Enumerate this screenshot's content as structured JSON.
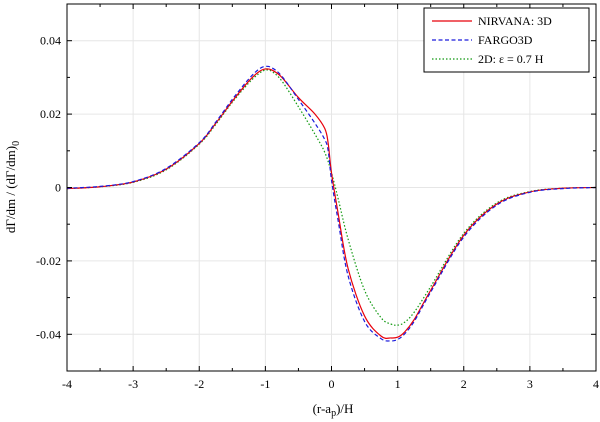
{
  "chart_data": {
    "type": "line",
    "xlabel": "(r-a",
    "xlabel_sub": "p",
    "xlabel_tail": ")/H",
    "ylabel": "dΓ/dm / (dΓ/dm)",
    "ylabel_sub": "0",
    "xlim": [
      -4,
      4
    ],
    "ylim": [
      -0.05,
      0.05
    ],
    "xticks": [
      -4,
      -3,
      -2,
      -1,
      0,
      1,
      2,
      3,
      4
    ],
    "xtick_labels": [
      "-4",
      "-3",
      "-2",
      "-1",
      "0",
      "1",
      "2",
      "3",
      "4"
    ],
    "yticks": [
      -0.04,
      -0.02,
      0,
      0.02,
      0.04
    ],
    "ytick_labels": [
      "-0.04",
      "-0.02",
      "0",
      "0.02",
      "0.04"
    ],
    "grid": true,
    "legend_position": "top-right",
    "series": [
      {
        "name": "NIRVANA: 3D",
        "color": "#e8000b",
        "dash": "solid",
        "x": [
          -4,
          -3.5,
          -3,
          -2.5,
          -2,
          -1.75,
          -1.5,
          -1.25,
          -1.1,
          -1,
          -0.9,
          -0.75,
          -0.5,
          -0.25,
          -0.1,
          -0.05,
          0,
          0.1,
          0.25,
          0.5,
          0.75,
          0.9,
          1,
          1.1,
          1.25,
          1.5,
          2,
          2.5,
          3,
          3.5,
          4
        ],
        "y": [
          -0.0003,
          0.0002,
          0.0015,
          0.005,
          0.012,
          0.0175,
          0.0235,
          0.029,
          0.0315,
          0.0323,
          0.032,
          0.03,
          0.0245,
          0.02,
          0.016,
          0.012,
          0.004,
          -0.007,
          -0.022,
          -0.035,
          -0.0405,
          -0.041,
          -0.0408,
          -0.0395,
          -0.036,
          -0.028,
          -0.013,
          -0.0045,
          -0.0012,
          -0.0002,
          0.0
        ]
      },
      {
        "name": "FARGO3D",
        "color": "#1a1adc",
        "dash": "dashed",
        "x": [
          -4,
          -3.5,
          -3,
          -2.5,
          -2,
          -1.75,
          -1.5,
          -1.25,
          -1.1,
          -1,
          -0.9,
          -0.75,
          -0.5,
          -0.25,
          -0.1,
          -0.05,
          0,
          0.1,
          0.25,
          0.5,
          0.75,
          0.9,
          1,
          1.1,
          1.25,
          1.5,
          2,
          2.5,
          3,
          3.5,
          4
        ],
        "y": [
          -0.0002,
          0.0003,
          0.0016,
          0.0052,
          0.0122,
          0.0178,
          0.024,
          0.0296,
          0.0322,
          0.033,
          0.0326,
          0.0303,
          0.024,
          0.0175,
          0.013,
          0.01,
          0.002,
          -0.009,
          -0.024,
          -0.0365,
          -0.0412,
          -0.0418,
          -0.0414,
          -0.04,
          -0.0365,
          -0.0285,
          -0.0135,
          -0.0048,
          -0.0013,
          -0.0003,
          0.0
        ]
      },
      {
        "name": "2D: ε = 0.7 H",
        "color": "#119911",
        "dash": "dotted",
        "x": [
          -4,
          -3.5,
          -3,
          -2.5,
          -2,
          -1.75,
          -1.5,
          -1.25,
          -1.1,
          -1,
          -0.9,
          -0.75,
          -0.5,
          -0.25,
          -0.1,
          0,
          0.1,
          0.25,
          0.5,
          0.75,
          0.9,
          1,
          1.1,
          1.25,
          1.5,
          2,
          2.5,
          3,
          3.5,
          4
        ],
        "y": [
          -0.0003,
          0.0002,
          0.0014,
          0.0048,
          0.0118,
          0.0172,
          0.0232,
          0.0285,
          0.031,
          0.032,
          0.0316,
          0.029,
          0.022,
          0.0145,
          0.0095,
          0.004,
          -0.003,
          -0.014,
          -0.028,
          -0.0355,
          -0.0372,
          -0.0375,
          -0.0368,
          -0.034,
          -0.027,
          -0.0125,
          -0.0042,
          -0.0011,
          -0.0002,
          0.0
        ]
      }
    ]
  }
}
